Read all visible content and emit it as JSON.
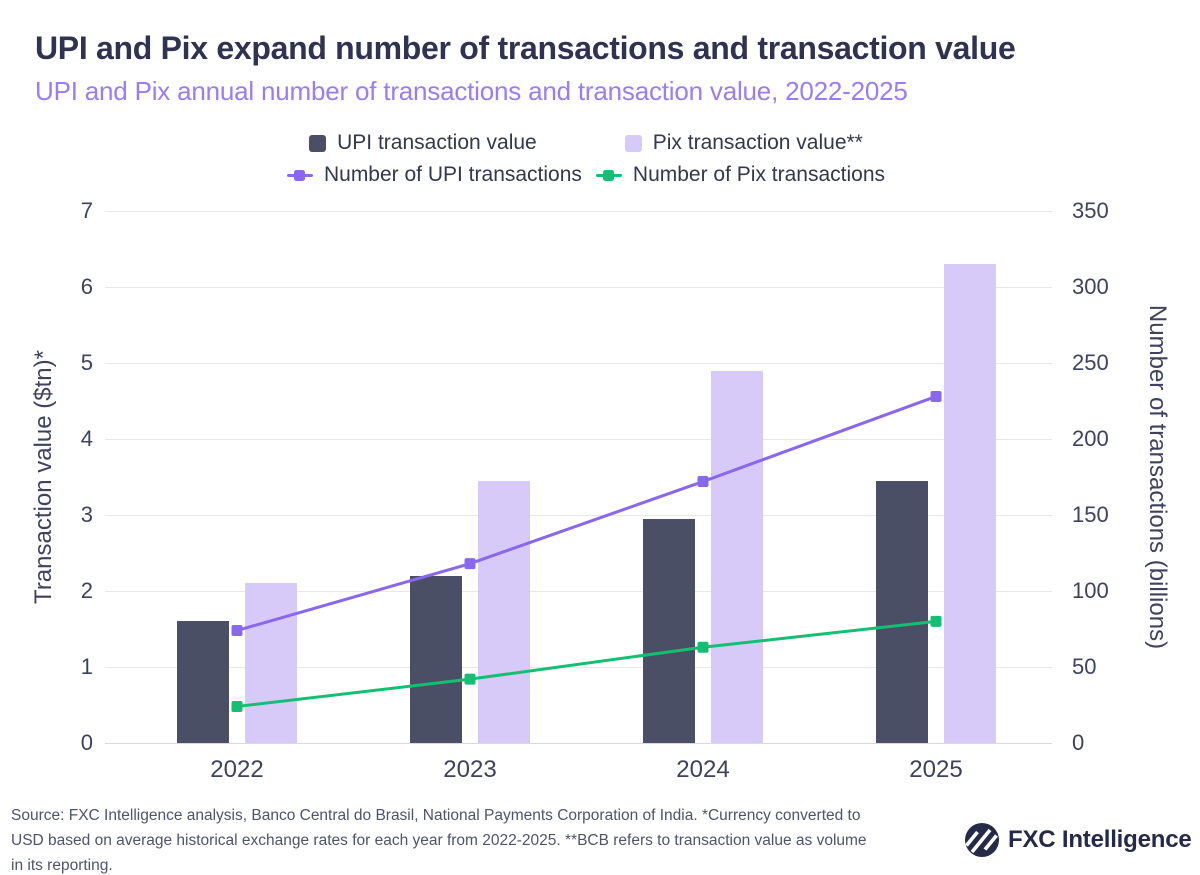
{
  "header": {
    "title": "UPI and Pix expand number of transactions and transaction value",
    "subtitle": "UPI and Pix annual number of transactions and transaction value, 2022-2025"
  },
  "chart_data": {
    "type": "bar+line combo",
    "categories": [
      "2022",
      "2023",
      "2024",
      "2025"
    ],
    "series": [
      {
        "name": "UPI transaction value",
        "type": "bar",
        "axis": "left",
        "color": "#4B4F66",
        "values": [
          1.6,
          2.2,
          2.95,
          3.45
        ]
      },
      {
        "name": "Pix transaction value**",
        "type": "bar",
        "axis": "left",
        "color": "#D8CAF8",
        "values": [
          2.1,
          3.45,
          4.9,
          6.3
        ]
      },
      {
        "name": "Number of UPI transactions",
        "type": "line",
        "axis": "right",
        "color": "#8A67EF",
        "values": [
          74,
          118,
          172,
          228
        ]
      },
      {
        "name": "Number of Pix transactions",
        "type": "line",
        "axis": "right",
        "color": "#14BF73",
        "values": [
          24,
          42,
          63,
          80
        ]
      }
    ],
    "left_axis": {
      "label": "Transaction value ($tn)*",
      "min": 0,
      "max": 7,
      "step": 1
    },
    "right_axis": {
      "label": "Number of transactions (billions)",
      "min": 0,
      "max": 350,
      "step": 50
    },
    "grid": true,
    "legend_position": "top-center"
  },
  "footer": {
    "source": "Source: FXC Intelligence analysis, Banco Central do Brasil, National Payments Corporation of India. *Currency converted to\nUSD based on average historical exchange rates for each year from 2022-2025. **BCB refers to transaction value as volume\nin its reporting.",
    "logo_text": "FXC Intelligence"
  },
  "colors": {
    "title": "#2F3250",
    "subtitle": "#9B7CF6",
    "axis_text": "#3E425E",
    "gridline": "#E8E8EC",
    "source_text": "#4F536D",
    "logo_navy": "#262A49",
    "background": "#FFFFFF"
  }
}
